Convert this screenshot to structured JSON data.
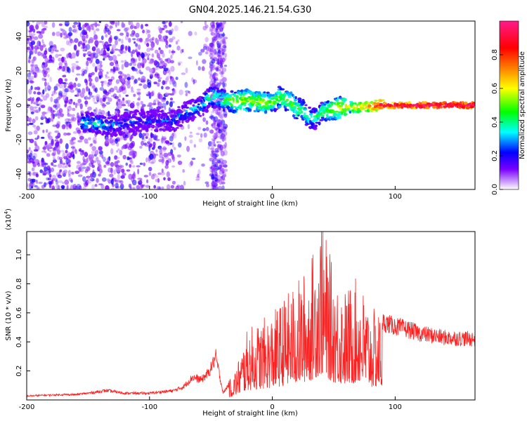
{
  "title": "GN04.2025.146.21.54.G30",
  "chart_data": [
    {
      "type": "heatmap",
      "xlabel": "Height of straight line (km)",
      "ylabel": "Frequency (Hz)",
      "xlim": [
        -200,
        165
      ],
      "ylim": [
        -49,
        49
      ],
      "xticks": [
        -200,
        -100,
        0,
        100
      ],
      "yticks": [
        -40,
        -20,
        0,
        20,
        40
      ],
      "colorbar": {
        "label": "Normalized spectral amplitude",
        "range": [
          0,
          1
        ],
        "ticks": [
          "0.0",
          "0.2",
          "0.4",
          "0.6",
          "0.8"
        ],
        "colors": [
          "#ffffff",
          "#7a00ff",
          "#0000ff",
          "#00ffff",
          "#00ff00",
          "#ffff00",
          "#ff7f00",
          "#ff0000",
          "#ff1a8c"
        ]
      },
      "ridge": [
        {
          "x": -150,
          "y": -10,
          "a": 0.35
        },
        {
          "x": -140,
          "y": -11,
          "a": 0.35
        },
        {
          "x": -130,
          "y": -12,
          "a": 0.3
        },
        {
          "x": -110,
          "y": -9,
          "a": 0.25
        },
        {
          "x": -80,
          "y": -9,
          "a": 0.25
        },
        {
          "x": -70,
          "y": -4,
          "a": 0.3
        },
        {
          "x": -60,
          "y": -2,
          "a": 0.35
        },
        {
          "x": -50,
          "y": 5,
          "a": 0.4
        },
        {
          "x": -40,
          "y": 3,
          "a": 0.45
        },
        {
          "x": -30,
          "y": 2,
          "a": 0.55
        },
        {
          "x": -20,
          "y": 3,
          "a": 0.55
        },
        {
          "x": -10,
          "y": 2,
          "a": 0.55
        },
        {
          "x": 0,
          "y": 1,
          "a": 0.5
        },
        {
          "x": 5,
          "y": 5,
          "a": 0.5
        },
        {
          "x": 10,
          "y": 3,
          "a": 0.5
        },
        {
          "x": 15,
          "y": 2,
          "a": 0.5
        },
        {
          "x": 20,
          "y": -2,
          "a": 0.5
        },
        {
          "x": 25,
          "y": -3,
          "a": 0.45
        },
        {
          "x": 30,
          "y": -7,
          "a": 0.4
        },
        {
          "x": 35,
          "y": -8,
          "a": 0.4
        },
        {
          "x": 40,
          "y": -4,
          "a": 0.45
        },
        {
          "x": 50,
          "y": -2,
          "a": 0.55
        },
        {
          "x": 60,
          "y": -1,
          "a": 0.6
        },
        {
          "x": 75,
          "y": -1,
          "a": 0.7
        },
        {
          "x": 85,
          "y": 0,
          "a": 0.85
        },
        {
          "x": 100,
          "y": 0,
          "a": 0.95
        },
        {
          "x": 120,
          "y": 0,
          "a": 1.0
        },
        {
          "x": 140,
          "y": 0,
          "a": 1.0
        },
        {
          "x": 165,
          "y": 0,
          "a": 1.0
        }
      ]
    },
    {
      "type": "line",
      "xlabel": "Height of straight line (km)",
      "ylabel": "SNR (10 * v/v)",
      "yscale_label": "(x10",
      "yscale_exp": "4",
      "yscale_close": ")",
      "xlim": [
        -200,
        165
      ],
      "ylim": [
        0,
        1.16
      ],
      "xticks": [
        -200,
        -100,
        0,
        100
      ],
      "yticks": [
        "0.2",
        "0.4",
        "0.6",
        "0.8",
        "1.0"
      ],
      "color": "#ff2020",
      "envelope": [
        {
          "x": -200,
          "y": 0.03
        },
        {
          "x": -170,
          "y": 0.04
        },
        {
          "x": -160,
          "y": 0.04
        },
        {
          "x": -150,
          "y": 0.05
        },
        {
          "x": -135,
          "y": 0.07
        },
        {
          "x": -120,
          "y": 0.05
        },
        {
          "x": -100,
          "y": 0.05
        },
        {
          "x": -80,
          "y": 0.07
        },
        {
          "x": -72,
          "y": 0.1
        },
        {
          "x": -65,
          "y": 0.17
        },
        {
          "x": -58,
          "y": 0.15
        },
        {
          "x": -52,
          "y": 0.2
        },
        {
          "x": -46,
          "y": 0.32
        },
        {
          "x": -40,
          "y": 0.05
        },
        {
          "x": -30,
          "y": 0.2
        },
        {
          "x": -20,
          "y": 0.45
        },
        {
          "x": -10,
          "y": 0.5
        },
        {
          "x": 0,
          "y": 0.55
        },
        {
          "x": 10,
          "y": 0.65
        },
        {
          "x": 20,
          "y": 0.75
        },
        {
          "x": 30,
          "y": 0.85
        },
        {
          "x": 40,
          "y": 1.16
        },
        {
          "x": 50,
          "y": 0.8
        },
        {
          "x": 60,
          "y": 0.7
        },
        {
          "x": 70,
          "y": 0.78
        },
        {
          "x": 80,
          "y": 0.58
        },
        {
          "x": 90,
          "y": 0.55
        },
        {
          "x": 100,
          "y": 0.52
        },
        {
          "x": 110,
          "y": 0.5
        },
        {
          "x": 120,
          "y": 0.47
        },
        {
          "x": 140,
          "y": 0.44
        },
        {
          "x": 165,
          "y": 0.43
        }
      ]
    }
  ]
}
